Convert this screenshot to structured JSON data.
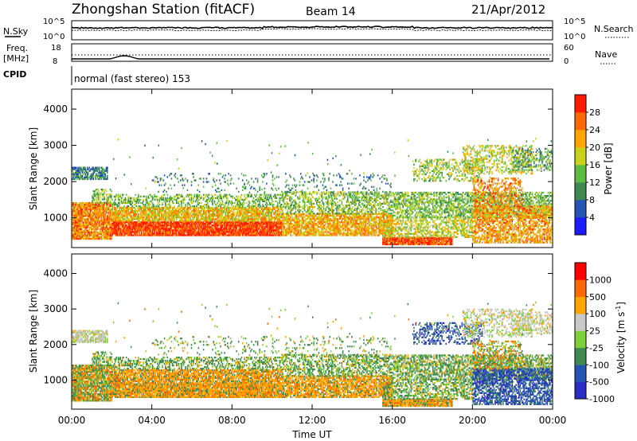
{
  "header": {
    "station": "Zhongshan Station (fitACF)",
    "beam": "Beam 14",
    "date": "21/Apr/2012"
  },
  "status_panel": {
    "nsky_label": "N.Sky",
    "noise_ticks": [
      "10^5",
      "10^0"
    ],
    "nsearch_label": "N.Search",
    "freq_label_1": "Freq.",
    "freq_label_2": "[MHz]",
    "freq_ticks": [
      "18",
      "8"
    ],
    "nave_label": "Nave",
    "nave_ticks": [
      "60",
      "0"
    ],
    "cpid_label": "CPID",
    "cpid_value": "normal (fast stereo) 153"
  },
  "colors": {
    "scale_power": [
      "#1c1cff",
      "#2555b0",
      "#3f8a52",
      "#5dbd43",
      "#c8d21a",
      "#ffa500",
      "#ff6a00",
      "#ff1a00"
    ],
    "scale_velocity": [
      "#ff0000",
      "#ff6a00",
      "#ffa500",
      "#c9c9c9",
      "#7ed03a",
      "#3f8a52",
      "#2555b0",
      "#2c2cc8"
    ]
  },
  "chart_data": [
    {
      "type": "heatmap",
      "ylabel": "Slant Range [km]",
      "xlabel": "",
      "x_ticks": [
        "00:00",
        "04:00",
        "08:00",
        "12:00",
        "16:00",
        "20:00",
        "00:00"
      ],
      "y_ticks": [
        4000,
        3000,
        2000,
        1000
      ],
      "ylim": [
        180,
        4550
      ],
      "colorbar_label": "Power [dB]",
      "colorbar_ticks": [
        "28",
        "24",
        "20",
        "16",
        "12",
        "8",
        "4"
      ],
      "colorbar_range": [
        0,
        32
      ]
    },
    {
      "type": "heatmap",
      "ylabel": "Slant Range [km]",
      "xlabel": "Time UT",
      "x_ticks": [
        "00:00",
        "04:00",
        "08:00",
        "12:00",
        "16:00",
        "20:00",
        "00:00"
      ],
      "y_ticks": [
        4000,
        3000,
        2000,
        1000
      ],
      "ylim": [
        180,
        4550
      ],
      "colorbar_label": "Velocity [m s",
      "colorbar_unit_superscript": "-1",
      "colorbar_unit_close": "]",
      "colorbar_ticks": [
        "1000",
        "500",
        "100",
        "25",
        "-25",
        "-100",
        "-500",
        "-1000"
      ]
    }
  ]
}
